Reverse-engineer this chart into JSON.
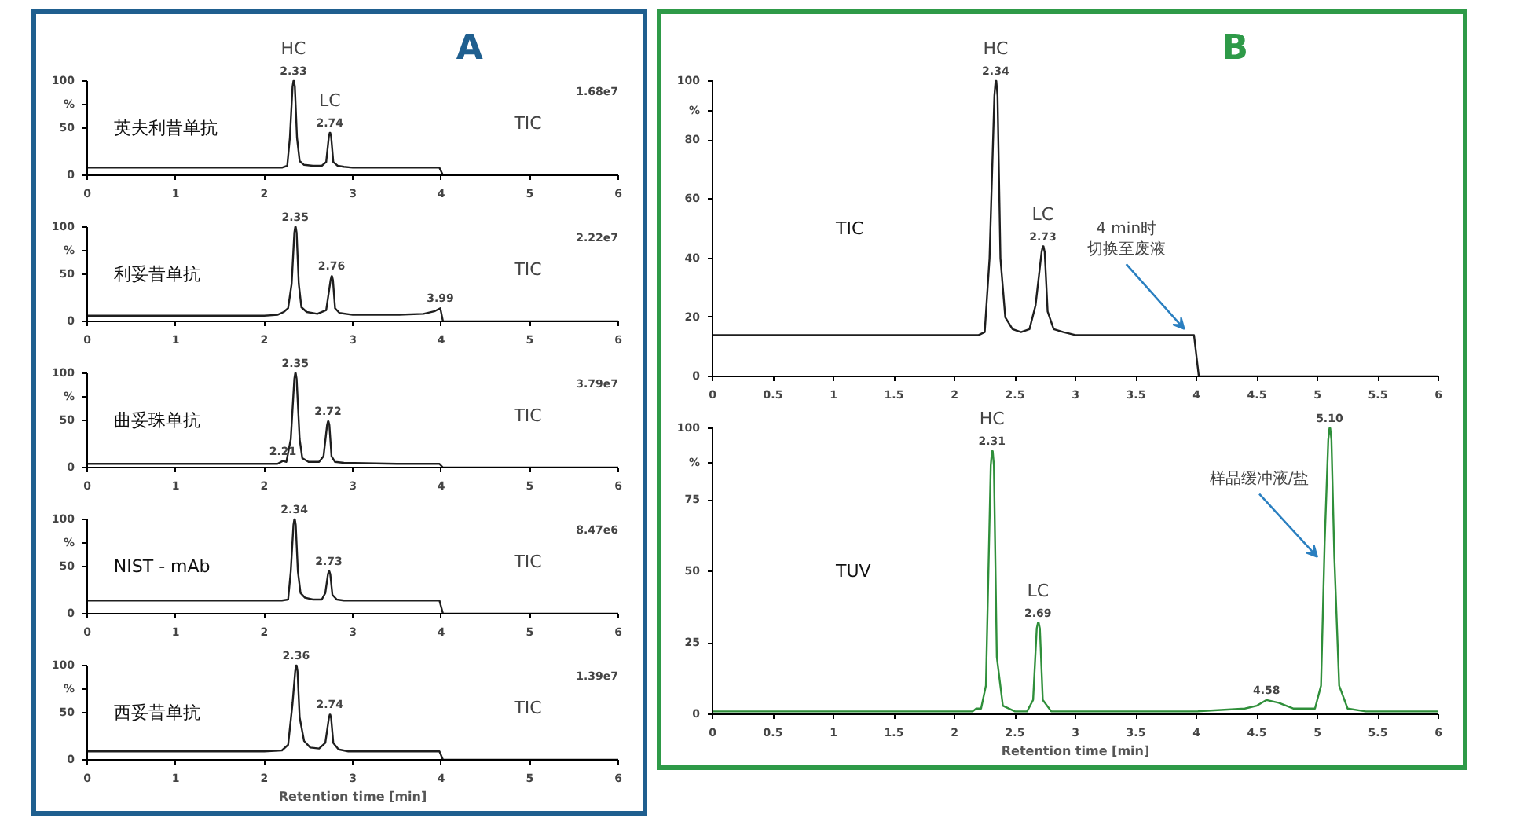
{
  "chart_data": [
    {
      "type": "line",
      "title": "A",
      "subtitle": "TIC",
      "xlim": [
        0,
        6
      ],
      "ylim": [
        0,
        100
      ],
      "xticks": [
        0,
        1,
        2,
        3,
        4,
        5,
        6
      ],
      "yticks": [
        0,
        50,
        {
          "value": 75,
          "label": "%"
        },
        100
      ],
      "series": [
        {
          "name": "英夫利昔单抗",
          "color": "#1e1e1e",
          "x": [
            0,
            1,
            2,
            2.2,
            2.26,
            2.29,
            2.32,
            2.33,
            2.336,
            2.346,
            2.37,
            2.4,
            2.45,
            2.55,
            2.65,
            2.7,
            2.73,
            2.74,
            2.746,
            2.756,
            2.78,
            2.83,
            2.9,
            3.0,
            3.5,
            3.98,
            4.02,
            5,
            6
          ],
          "values": [
            8,
            8,
            8,
            8,
            10,
            40,
            94,
            100,
            100,
            94,
            40,
            15,
            11,
            10,
            10,
            14,
            41,
            45,
            45,
            41,
            14,
            10,
            9,
            8,
            8,
            8,
            0,
            0,
            0
          ]
        }
      ],
      "annotations": [
        {
          "text": "2.33",
          "x": 2.33,
          "y": 100
        },
        {
          "text": "HC",
          "x": 2.33,
          "y": 100
        },
        {
          "text": "2.74",
          "x": 2.74,
          "y": 45
        },
        {
          "text": "LC",
          "x": 2.74,
          "y": 45
        },
        "1.68e7"
      ]
    },
    {
      "type": "line",
      "subtitle": "TIC",
      "xlim": [
        0,
        6
      ],
      "ylim": [
        0,
        100
      ],
      "xticks": [
        0,
        1,
        2,
        3,
        4,
        5,
        6
      ],
      "yticks": [
        0,
        50,
        {
          "value": 75,
          "label": "%"
        },
        100
      ],
      "series": [
        {
          "name": "利妥昔单抗",
          "color": "#1e1e1e",
          "x": [
            0,
            1,
            2,
            2.15,
            2.22,
            2.27,
            2.31,
            2.34,
            2.35,
            2.356,
            2.366,
            2.39,
            2.42,
            2.48,
            2.6,
            2.7,
            2.75,
            2.76,
            2.766,
            2.776,
            2.8,
            2.85,
            3.0,
            3.5,
            3.8,
            3.93,
            3.99,
            4.02,
            5,
            6
          ],
          "values": [
            6,
            6,
            6,
            7,
            10,
            14,
            40,
            94,
            100,
            100,
            94,
            40,
            15,
            10,
            8,
            12,
            44,
            48,
            48,
            44,
            14,
            9,
            7,
            7,
            8,
            11,
            14,
            0,
            0,
            0
          ]
        }
      ],
      "annotations": [
        {
          "text": "2.35",
          "x": 2.35,
          "y": 100
        },
        {
          "text": "2.76",
          "x": 2.76,
          "y": 48
        },
        {
          "text": "3.99",
          "x": 3.99,
          "y": 14
        },
        "2.22e7"
      ]
    },
    {
      "type": "line",
      "subtitle": "TIC",
      "xlim": [
        0,
        6
      ],
      "ylim": [
        0,
        100
      ],
      "xticks": [
        0,
        1,
        2,
        3,
        4,
        5,
        6
      ],
      "yticks": [
        0,
        50,
        {
          "value": 75,
          "label": "%"
        },
        100
      ],
      "series": [
        {
          "name": "曲妥珠单抗",
          "color": "#1e1e1e",
          "x": [
            0,
            1,
            2,
            2.15,
            2.21,
            2.25,
            2.3,
            2.34,
            2.35,
            2.356,
            2.366,
            2.4,
            2.43,
            2.5,
            2.62,
            2.67,
            2.71,
            2.72,
            2.726,
            2.736,
            2.76,
            2.8,
            2.9,
            3.5,
            3.98,
            4.02,
            5,
            6
          ],
          "values": [
            4,
            4,
            4,
            4,
            7,
            6,
            30,
            94,
            100,
            100,
            94,
            30,
            10,
            6,
            6,
            12,
            45,
            49,
            49,
            45,
            12,
            6,
            5,
            4,
            4,
            0,
            0,
            0
          ]
        }
      ],
      "annotations": [
        {
          "text": "2.35",
          "x": 2.35,
          "y": 100
        },
        {
          "text": "2.72",
          "x": 2.72,
          "y": 49
        },
        {
          "text": "2.21",
          "x": 2.21,
          "y": 7
        },
        "3.79e7"
      ]
    },
    {
      "type": "line",
      "subtitle": "TIC",
      "xlim": [
        0,
        6
      ],
      "ylim": [
        0,
        100
      ],
      "xticks": [
        0,
        1,
        2,
        3,
        4,
        5,
        6
      ],
      "yticks": [
        0,
        50,
        {
          "value": 75,
          "label": "%"
        },
        100
      ],
      "series": [
        {
          "name": "NIST - mAb",
          "color": "#1e1e1e",
          "x": [
            0,
            1,
            2,
            2.2,
            2.27,
            2.3,
            2.33,
            2.34,
            2.346,
            2.356,
            2.38,
            2.41,
            2.46,
            2.55,
            2.65,
            2.69,
            2.72,
            2.73,
            2.736,
            2.746,
            2.77,
            2.82,
            2.9,
            3.5,
            3.98,
            4.02,
            5,
            6
          ],
          "values": [
            14,
            14,
            14,
            14,
            15,
            45,
            94,
            100,
            100,
            94,
            45,
            22,
            17,
            15,
            15,
            22,
            42,
            45,
            45,
            42,
            20,
            15,
            14,
            14,
            14,
            0,
            0,
            0
          ]
        }
      ],
      "annotations": [
        {
          "text": "2.34",
          "x": 2.34,
          "y": 100
        },
        {
          "text": "2.73",
          "x": 2.73,
          "y": 45
        },
        "8.47e6"
      ]
    },
    {
      "type": "line",
      "subtitle": "TIC",
      "xlabel": "Retention time [min]",
      "xlim": [
        0,
        6
      ],
      "ylim": [
        0,
        100
      ],
      "xticks": [
        0,
        1,
        2,
        3,
        4,
        5,
        6
      ],
      "yticks": [
        0,
        50,
        {
          "value": 75,
          "label": "%"
        },
        100
      ],
      "series": [
        {
          "name": "西妥昔单抗",
          "color": "#1e1e1e",
          "x": [
            0,
            1,
            2,
            2.2,
            2.27,
            2.32,
            2.35,
            2.36,
            2.366,
            2.376,
            2.4,
            2.45,
            2.52,
            2.62,
            2.69,
            2.73,
            2.74,
            2.746,
            2.756,
            2.78,
            2.84,
            2.95,
            3.5,
            3.98,
            4.02,
            5,
            6
          ],
          "values": [
            9,
            9,
            9,
            10,
            16,
            60,
            94,
            100,
            100,
            94,
            45,
            20,
            13,
            12,
            18,
            44,
            48,
            48,
            44,
            18,
            11,
            9,
            9,
            9,
            0,
            0,
            0
          ]
        }
      ],
      "annotations": [
        {
          "text": "2.36",
          "x": 2.36,
          "y": 100
        },
        {
          "text": "2.74",
          "x": 2.74,
          "y": 48
        },
        "1.39e7"
      ]
    },
    {
      "type": "line",
      "title": "B",
      "xlim": [
        0,
        6
      ],
      "ylim": [
        0,
        100
      ],
      "xticks": [
        0,
        0.5,
        1,
        1.5,
        2,
        2.5,
        3,
        3.5,
        4,
        4.5,
        5,
        5.5,
        6
      ],
      "yticks": [
        0,
        20,
        40,
        60,
        80,
        {
          "value": 90,
          "label": "%"
        },
        100
      ],
      "series": [
        {
          "name": "TIC",
          "color": "#1e1e1e",
          "x": [
            0,
            0.5,
            1,
            1.5,
            2,
            2.2,
            2.25,
            2.29,
            2.33,
            2.34,
            2.346,
            2.356,
            2.38,
            2.42,
            2.48,
            2.55,
            2.62,
            2.67,
            2.72,
            2.73,
            2.736,
            2.746,
            2.77,
            2.82,
            2.9,
            3.0,
            3.5,
            3.98,
            4.02,
            4.5,
            5,
            5.5,
            6
          ],
          "values": [
            14,
            14,
            14,
            14,
            14,
            14,
            15,
            40,
            95,
            100,
            100,
            95,
            40,
            20,
            16,
            15,
            16,
            24,
            42,
            44,
            44,
            42,
            22,
            16,
            15,
            14,
            14,
            14,
            0,
            0,
            0,
            0,
            0
          ]
        }
      ],
      "annotations": [
        {
          "text": "2.34",
          "x": 2.34,
          "y": 100
        },
        {
          "text": "HC",
          "x": 2.34,
          "y": 100
        },
        {
          "text": "2.73",
          "x": 2.73,
          "y": 44
        },
        {
          "text": "LC",
          "x": 2.73,
          "y": 44
        },
        {
          "text": "4 min时切换至废液",
          "x": 3.9,
          "y": 16
        }
      ]
    },
    {
      "type": "line",
      "xlabel": "Retention time [min]",
      "xlim": [
        0,
        6
      ],
      "ylim": [
        0,
        100
      ],
      "xticks": [
        0,
        0.5,
        1,
        1.5,
        2,
        2.5,
        3,
        3.5,
        4,
        4.5,
        5,
        5.5,
        6
      ],
      "yticks": [
        0,
        25,
        50,
        75,
        {
          "value": 88,
          "label": "%"
        },
        100
      ],
      "series": [
        {
          "name": "TUV",
          "color": "#2f8f3a",
          "x": [
            0,
            1,
            2,
            2.15,
            2.18,
            2.22,
            2.26,
            2.3,
            2.31,
            2.316,
            2.326,
            2.35,
            2.4,
            2.5,
            2.6,
            2.65,
            2.68,
            2.69,
            2.696,
            2.706,
            2.73,
            2.8,
            3.0,
            3.5,
            4.0,
            4.4,
            4.5,
            4.58,
            4.68,
            4.8,
            4.9,
            4.98,
            5.03,
            5.06,
            5.09,
            5.1,
            5.106,
            5.116,
            5.14,
            5.18,
            5.25,
            5.4,
            6
          ],
          "values": [
            1,
            1,
            1,
            1,
            2,
            2,
            10,
            87,
            92,
            92,
            87,
            20,
            3,
            1,
            1,
            5,
            30,
            32,
            32,
            30,
            5,
            1,
            1,
            1,
            1,
            2,
            3,
            5,
            4,
            2,
            2,
            2,
            10,
            60,
            96,
            100,
            100,
            96,
            55,
            10,
            2,
            1,
            1
          ]
        }
      ],
      "annotations": [
        {
          "text": "2.31",
          "x": 2.31,
          "y": 92
        },
        {
          "text": "HC",
          "x": 2.31,
          "y": 92
        },
        {
          "text": "2.69",
          "x": 2.69,
          "y": 32
        },
        {
          "text": "LC",
          "x": 2.69,
          "y": 32
        },
        {
          "text": "4.58",
          "x": 4.58,
          "y": 5
        },
        {
          "text": "5.10",
          "x": 5.1,
          "y": 100
        },
        {
          "text": "样品缓冲液/盐",
          "x": 5.0,
          "y": 55
        }
      ]
    }
  ]
}
